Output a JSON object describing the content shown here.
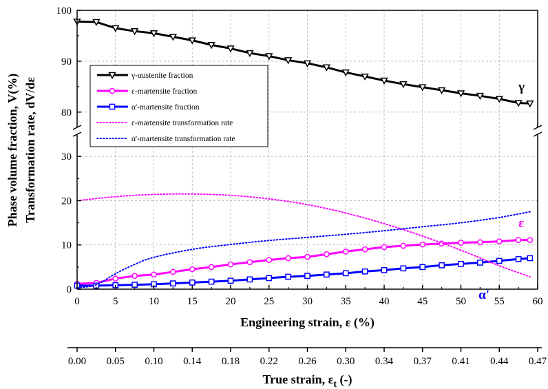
{
  "chart_data": {
    "type": "line",
    "y_axis_label_lines": [
      "Phase volume fraction, V(%)",
      "Transformation rate, dV/dε"
    ],
    "x_axis_label": "Engineering strain, ε (%)",
    "secondary_x_axis_label": {
      "main": "True strain, ε",
      "subscript": "t",
      "suffix": " (-)"
    },
    "x_range": [
      0,
      60
    ],
    "x_ticks": [
      "0",
      "5",
      "10",
      "15",
      "20",
      "25",
      "30",
      "35",
      "40",
      "45",
      "50",
      "55",
      "60"
    ],
    "secondary_x_ticks": [
      "0.00",
      "0.05",
      "0.10",
      "0.14",
      "0.18",
      "0.22",
      "0.26",
      "0.30",
      "0.34",
      "0.37",
      "0.41",
      "0.44",
      "0.47"
    ],
    "y_lower_range": [
      0,
      35
    ],
    "y_lower_ticks": [
      "0",
      "10",
      "20",
      "30"
    ],
    "y_upper_range": [
      77,
      100
    ],
    "y_upper_ticks": [
      "80",
      "90",
      "100"
    ],
    "y_axis_break": true,
    "grid": true,
    "legend_position": "upper-left",
    "series": [
      {
        "name": "γ-αustenite fraction",
        "color": "#000000",
        "style": "solid-line",
        "marker": "triangle-down-open",
        "panel": "upper",
        "x": [
          0,
          2.5,
          5,
          7.5,
          10,
          12.5,
          15,
          17.5,
          20,
          22.5,
          25,
          27.5,
          30,
          32.5,
          35,
          37.5,
          40,
          42.5,
          45,
          47.5,
          50,
          52.5,
          55,
          57.5,
          59
        ],
        "y": [
          97.8,
          97.7,
          96.5,
          95.9,
          95.5,
          94.8,
          94.1,
          93.2,
          92.5,
          91.6,
          91.0,
          90.2,
          89.6,
          88.8,
          87.8,
          87.0,
          86.2,
          85.5,
          84.9,
          84.3,
          83.7,
          83.2,
          82.6,
          81.8,
          81.7
        ]
      },
      {
        "name": "ε-martensite fraction",
        "color": "#ff00ff",
        "style": "solid-line",
        "marker": "circle-open",
        "panel": "lower",
        "x": [
          0,
          2.5,
          5,
          7.5,
          10,
          12.5,
          15,
          17.5,
          20,
          22.5,
          25,
          27.5,
          30,
          32.5,
          35,
          37.5,
          40,
          42.5,
          45,
          47.5,
          50,
          52.5,
          55,
          57.5,
          59
        ],
        "y": [
          1.2,
          1.4,
          2.4,
          3.0,
          3.3,
          3.9,
          4.5,
          5.0,
          5.6,
          6.1,
          6.6,
          7.0,
          7.3,
          7.9,
          8.5,
          9.0,
          9.5,
          9.8,
          10.1,
          10.3,
          10.5,
          10.6,
          10.8,
          11.1,
          11.1
        ]
      },
      {
        "name": "α'-martensite fraction",
        "color": "#0000ff",
        "style": "solid-line",
        "marker": "square-open",
        "panel": "lower",
        "x": [
          0,
          2.5,
          5,
          7.5,
          10,
          12.5,
          15,
          17.5,
          20,
          22.5,
          25,
          27.5,
          30,
          32.5,
          35,
          37.5,
          40,
          42.5,
          45,
          47.5,
          50,
          52.5,
          55,
          57.5,
          59
        ],
        "y": [
          0.8,
          0.8,
          0.9,
          1.0,
          1.1,
          1.3,
          1.5,
          1.7,
          1.9,
          2.2,
          2.5,
          2.8,
          3.0,
          3.3,
          3.6,
          4.0,
          4.3,
          4.7,
          5.0,
          5.4,
          5.7,
          6.0,
          6.4,
          6.8,
          7.0
        ]
      },
      {
        "name": "ε-martensite transformation rate",
        "color": "#ff00ff",
        "style": "dotted-line",
        "marker": "none",
        "panel": "lower",
        "x": [
          0,
          5,
          10,
          15,
          20,
          25,
          30,
          35,
          40,
          45,
          50,
          55,
          59
        ],
        "y": [
          20.0,
          20.9,
          21.4,
          21.5,
          21.2,
          20.4,
          19.1,
          17.2,
          14.8,
          12.0,
          8.8,
          5.3,
          2.8
        ]
      },
      {
        "name": "α'-martensite transformation rate",
        "color": "#0000ff",
        "style": "dotted-line",
        "marker": "none",
        "panel": "lower",
        "x": [
          0,
          2.5,
          5,
          7.5,
          10,
          15,
          20,
          25,
          30,
          35,
          40,
          45,
          50,
          55,
          59
        ],
        "y": [
          0.3,
          1.0,
          3.5,
          5.6,
          7.2,
          9.0,
          10.1,
          11.0,
          11.7,
          12.4,
          13.2,
          14.1,
          15.0,
          16.2,
          17.5
        ]
      }
    ],
    "annotations": [
      {
        "text": "γ",
        "x": 57.5,
        "y": 84.2,
        "color": "#000000"
      },
      {
        "text": "ε",
        "x": 57.5,
        "y": 14.0,
        "color": "#ff00ff"
      },
      {
        "text": "α'",
        "x": 52.3,
        "y": -2.2,
        "color": "#0000ff"
      }
    ]
  }
}
